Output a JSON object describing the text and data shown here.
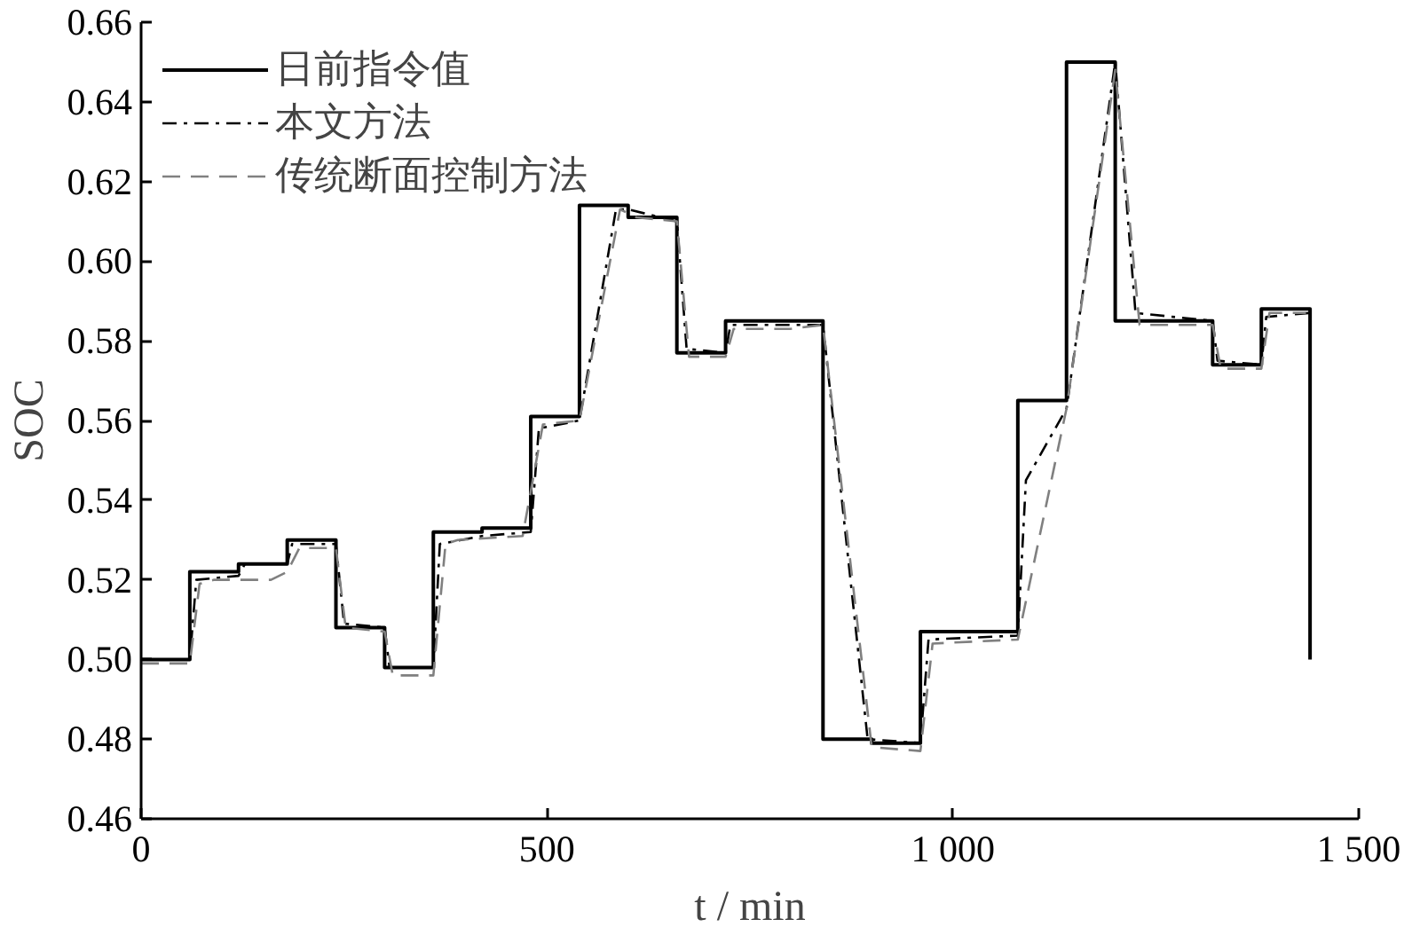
{
  "chart_data": {
    "type": "line",
    "xlabel": "t / min",
    "ylabel": "SOC",
    "xlim": [
      0,
      1500
    ],
    "ylim": [
      0.46,
      0.66
    ],
    "xticks": [
      0,
      500,
      {
        "value": 1000,
        "label": "1 000"
      },
      {
        "value": 1500,
        "label": "1 500"
      }
    ],
    "yticks": [
      0.46,
      0.48,
      {
        "value": 0.5,
        "label": "0.50"
      },
      0.52,
      0.54,
      0.56,
      0.58,
      {
        "value": 0.6,
        "label": "0.60"
      },
      0.62,
      0.64,
      0.66
    ],
    "grid": false,
    "legend": "top left",
    "series": [
      {
        "name": "日前指令值",
        "type": "step",
        "color": "#000000",
        "line_style": "solid",
        "x": [
          0,
          60,
          120,
          180,
          240,
          300,
          360,
          420,
          480,
          540,
          600,
          660,
          720,
          780,
          840,
          900,
          960,
          1020,
          1080,
          1140,
          1200,
          1260,
          1320,
          1380,
          1440
        ],
        "values": [
          0.5,
          0.522,
          0.524,
          0.53,
          0.508,
          0.498,
          0.532,
          0.533,
          0.561,
          0.614,
          0.611,
          0.577,
          0.585,
          0.585,
          0.48,
          0.479,
          0.507,
          0.507,
          0.565,
          0.65,
          0.585,
          0.585,
          0.574,
          0.588,
          0.5
        ]
      },
      {
        "name": "本文方法",
        "color": "#000000",
        "line_style": "dashdot",
        "x": [
          0,
          60,
          68,
          120,
          128,
          180,
          186,
          240,
          250,
          300,
          306,
          360,
          368,
          420,
          480,
          490,
          540,
          585,
          600,
          660,
          672,
          720,
          726,
          840,
          895,
          960,
          970,
          1080,
          1090,
          1140,
          1200,
          1225,
          1320,
          1326,
          1380,
          1386,
          1440
        ],
        "values": [
          0.5,
          0.5,
          0.52,
          0.521,
          0.524,
          0.524,
          0.529,
          0.529,
          0.509,
          0.508,
          0.498,
          0.498,
          0.529,
          0.531,
          0.532,
          0.558,
          0.56,
          0.613,
          0.613,
          0.61,
          0.578,
          0.577,
          0.584,
          0.584,
          0.48,
          0.479,
          0.505,
          0.506,
          0.545,
          0.563,
          0.65,
          0.587,
          0.585,
          0.575,
          0.574,
          0.586,
          0.587
        ]
      },
      {
        "name": "传统断面控制方法",
        "color": "#808080",
        "line_style": "dashed",
        "x": [
          0,
          60,
          72,
          90,
          160,
          180,
          195,
          240,
          252,
          300,
          310,
          360,
          375,
          390,
          470,
          495,
          540,
          590,
          610,
          660,
          675,
          720,
          730,
          800,
          840,
          900,
          960,
          975,
          1080,
          1140,
          1200,
          1230,
          1320,
          1330,
          1380,
          1390,
          1435
        ],
        "values": [
          0.499,
          0.499,
          0.519,
          0.52,
          0.52,
          0.522,
          0.528,
          0.528,
          0.508,
          0.507,
          0.496,
          0.496,
          0.529,
          0.53,
          0.531,
          0.559,
          0.56,
          0.613,
          0.611,
          0.61,
          0.576,
          0.576,
          0.583,
          0.583,
          0.584,
          0.478,
          0.477,
          0.504,
          0.505,
          0.563,
          0.648,
          0.584,
          0.584,
          0.573,
          0.573,
          0.587,
          0.587
        ]
      }
    ]
  }
}
